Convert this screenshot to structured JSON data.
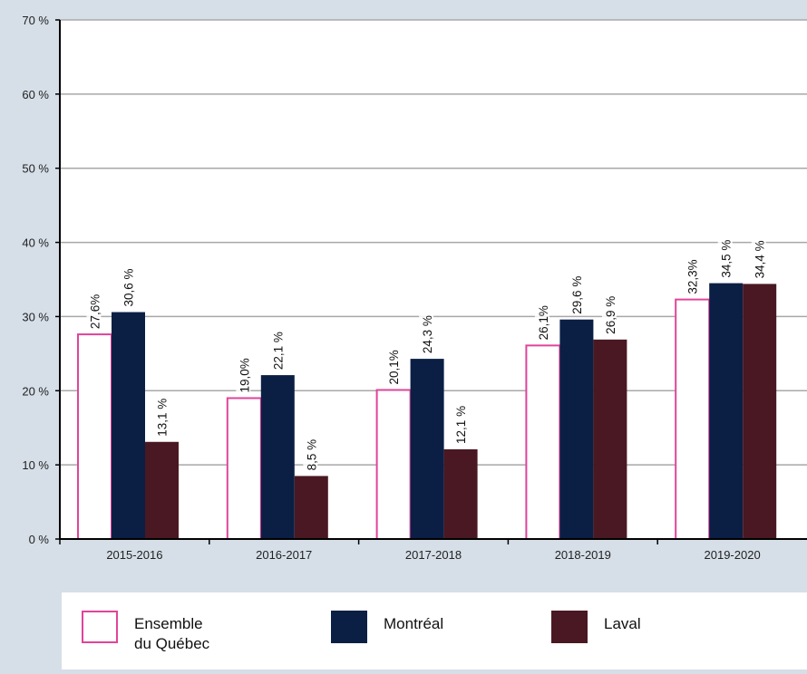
{
  "chart_data": {
    "type": "bar",
    "categories": [
      "2015-2016",
      "2016-2017",
      "2017-2018",
      "2018-2019",
      "2019-2020"
    ],
    "series": [
      {
        "name": "Ensemble\ndu Québec",
        "values": [
          27.6,
          19.0,
          20.1,
          26.1,
          32.3
        ],
        "labels": [
          "27,6%",
          "19,0%",
          "20,1%",
          "26,1%",
          "32,3%"
        ],
        "color": "#ffffff",
        "border": "#e0449a"
      },
      {
        "name": "Montréal",
        "values": [
          30.6,
          22.1,
          24.3,
          29.6,
          34.5
        ],
        "labels": [
          "30,6 %",
          "22,1 %",
          "24,3 %",
          "29,6 %",
          "34,5 %"
        ],
        "color": "#0b1f45"
      },
      {
        "name": "Laval",
        "values": [
          13.1,
          8.5,
          12.1,
          26.9,
          34.4
        ],
        "labels": [
          "13,1 %",
          "8,5 %",
          "12,1 %",
          "26,9 %",
          "34,4 %"
        ],
        "color": "#4a1822"
      }
    ],
    "yticks": [
      0,
      10,
      20,
      30,
      40,
      50,
      60,
      70
    ],
    "ytick_labels": [
      "0 %",
      "10 %",
      "20 %",
      "30 %",
      "40 %",
      "50 %",
      "60 %",
      "70 %"
    ],
    "ylim": [
      0,
      70
    ],
    "grid": true,
    "legend_position": "bottom"
  }
}
